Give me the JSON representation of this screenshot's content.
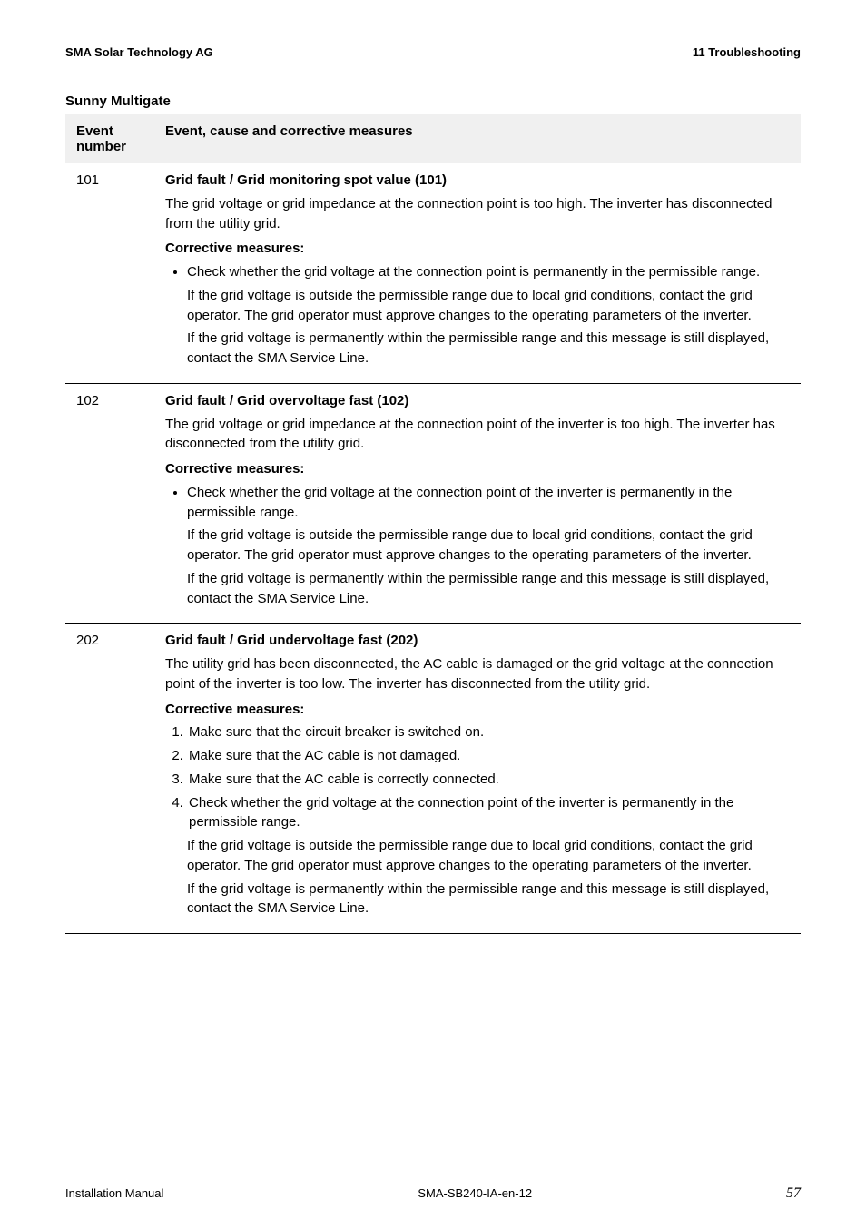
{
  "header": {
    "left": "SMA Solar Technology AG",
    "right": "11 Troubleshooting"
  },
  "section_title": "Sunny Multigate",
  "band": {
    "left": "Event number",
    "right": "Event, cause and corrective measures"
  },
  "entries": [
    {
      "num": "101",
      "title": "Grid fault / Grid monitoring spot value (101)",
      "para1": "The grid voltage or grid impedance at the connection point is too high. The inverter has disconnected from the utility grid.",
      "sub": "Corrective measures:",
      "bullet1": "Check whether the grid voltage at the connection point is permanently in the permissible range.",
      "hang1": "If the grid voltage is outside the permissible range due to local grid conditions, contact the grid operator. The grid operator must approve changes to the operating parameters of the inverter.",
      "hang2": "If the grid voltage is permanently within the permissible range and this message is still displayed, contact the SMA Service Line."
    },
    {
      "num": "102",
      "title": "Grid fault / Grid overvoltage fast (102)",
      "para1": "The grid voltage or grid impedance at the connection point of the inverter is too high. The inverter has disconnected from the utility grid.",
      "sub": "Corrective measures:",
      "bullet1": "Check whether the grid voltage at the connection point of the inverter is permanently in the permissible range.",
      "hang1": "If the grid voltage is outside the permissible range due to local grid conditions, contact the grid operator. The grid operator must approve changes to the operating parameters of the inverter.",
      "hang2": "If the grid voltage is permanently within the permissible range and this message is still displayed, contact the SMA Service Line."
    },
    {
      "num": "202",
      "title": "Grid fault / Grid undervoltage fast (202)",
      "para1": "The utility grid has been disconnected, the AC cable is damaged or the grid voltage at the connection point of the inverter is too low. The inverter has disconnected from the utility grid.",
      "sub": "Corrective measures:",
      "ol1": "Make sure that the circuit breaker is switched on.",
      "ol2": "Make sure that the AC cable is not damaged.",
      "ol3": "Make sure that the AC cable is correctly connected.",
      "ol4": "Check whether the grid voltage at the connection point of the inverter is permanently in the permissible range.",
      "hang1": "If the grid voltage is outside the permissible range due to local grid conditions, contact the grid operator. The grid operator must approve changes to the operating parameters of the inverter.",
      "hang2": "If the grid voltage is permanently within the permissible range and this message is still displayed, contact the SMA Service Line."
    }
  ],
  "footer": {
    "left": "Installation Manual",
    "center": "SMA-SB240-IA-en-12",
    "pagenum": "57"
  }
}
